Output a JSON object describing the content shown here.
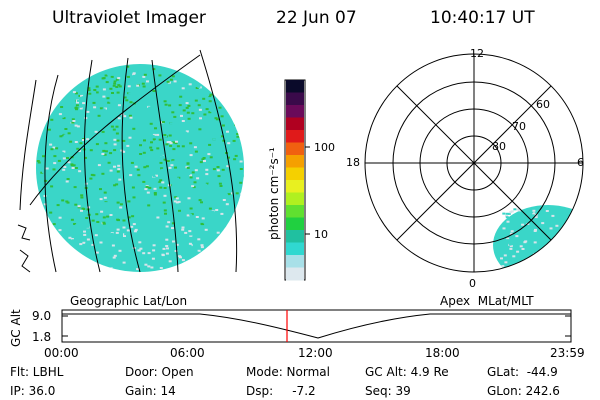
{
  "header": {
    "instrument": "Ultraviolet Imager",
    "date": "22 Jun 07",
    "time": "10:40:17 UT"
  },
  "colors": {
    "aurora_low": "#3ad6c8",
    "aurora_mid": "#2fbf3a",
    "aurora_pale": "#d7e4ea",
    "marker": "#ff0000"
  },
  "colorbar": {
    "unit_label": "photon cm⁻²s⁻¹",
    "ticks": [
      "100",
      "10"
    ],
    "scale": "log"
  },
  "left_panel": {
    "label": "Geographic Lat/Lon"
  },
  "right_panel": {
    "label": "Apex  MLat/MLT",
    "mlt_labels": [
      "12",
      "18",
      "6",
      "0"
    ],
    "mlat_labels": [
      "60",
      "70",
      "80"
    ]
  },
  "altitude_plot": {
    "ylabel": "GC Alt",
    "yticks": [
      "9.0",
      "1.8"
    ],
    "xticks": [
      "00:00",
      "06:00",
      "12:00",
      "18:00",
      "23:59"
    ]
  },
  "status": {
    "flt": "Flt: LBHL",
    "ip": "IP: 36.0",
    "door": "Door: Open",
    "gain": "Gain: 14",
    "mode": "Mode: Normal",
    "dsp": "Dsp:     -7.2",
    "gc_alt": "GC Alt: 4.9 Re",
    "seq": "Seq: 39",
    "glat": "GLat:  -44.9",
    "glon": "GLon: 242.6"
  }
}
